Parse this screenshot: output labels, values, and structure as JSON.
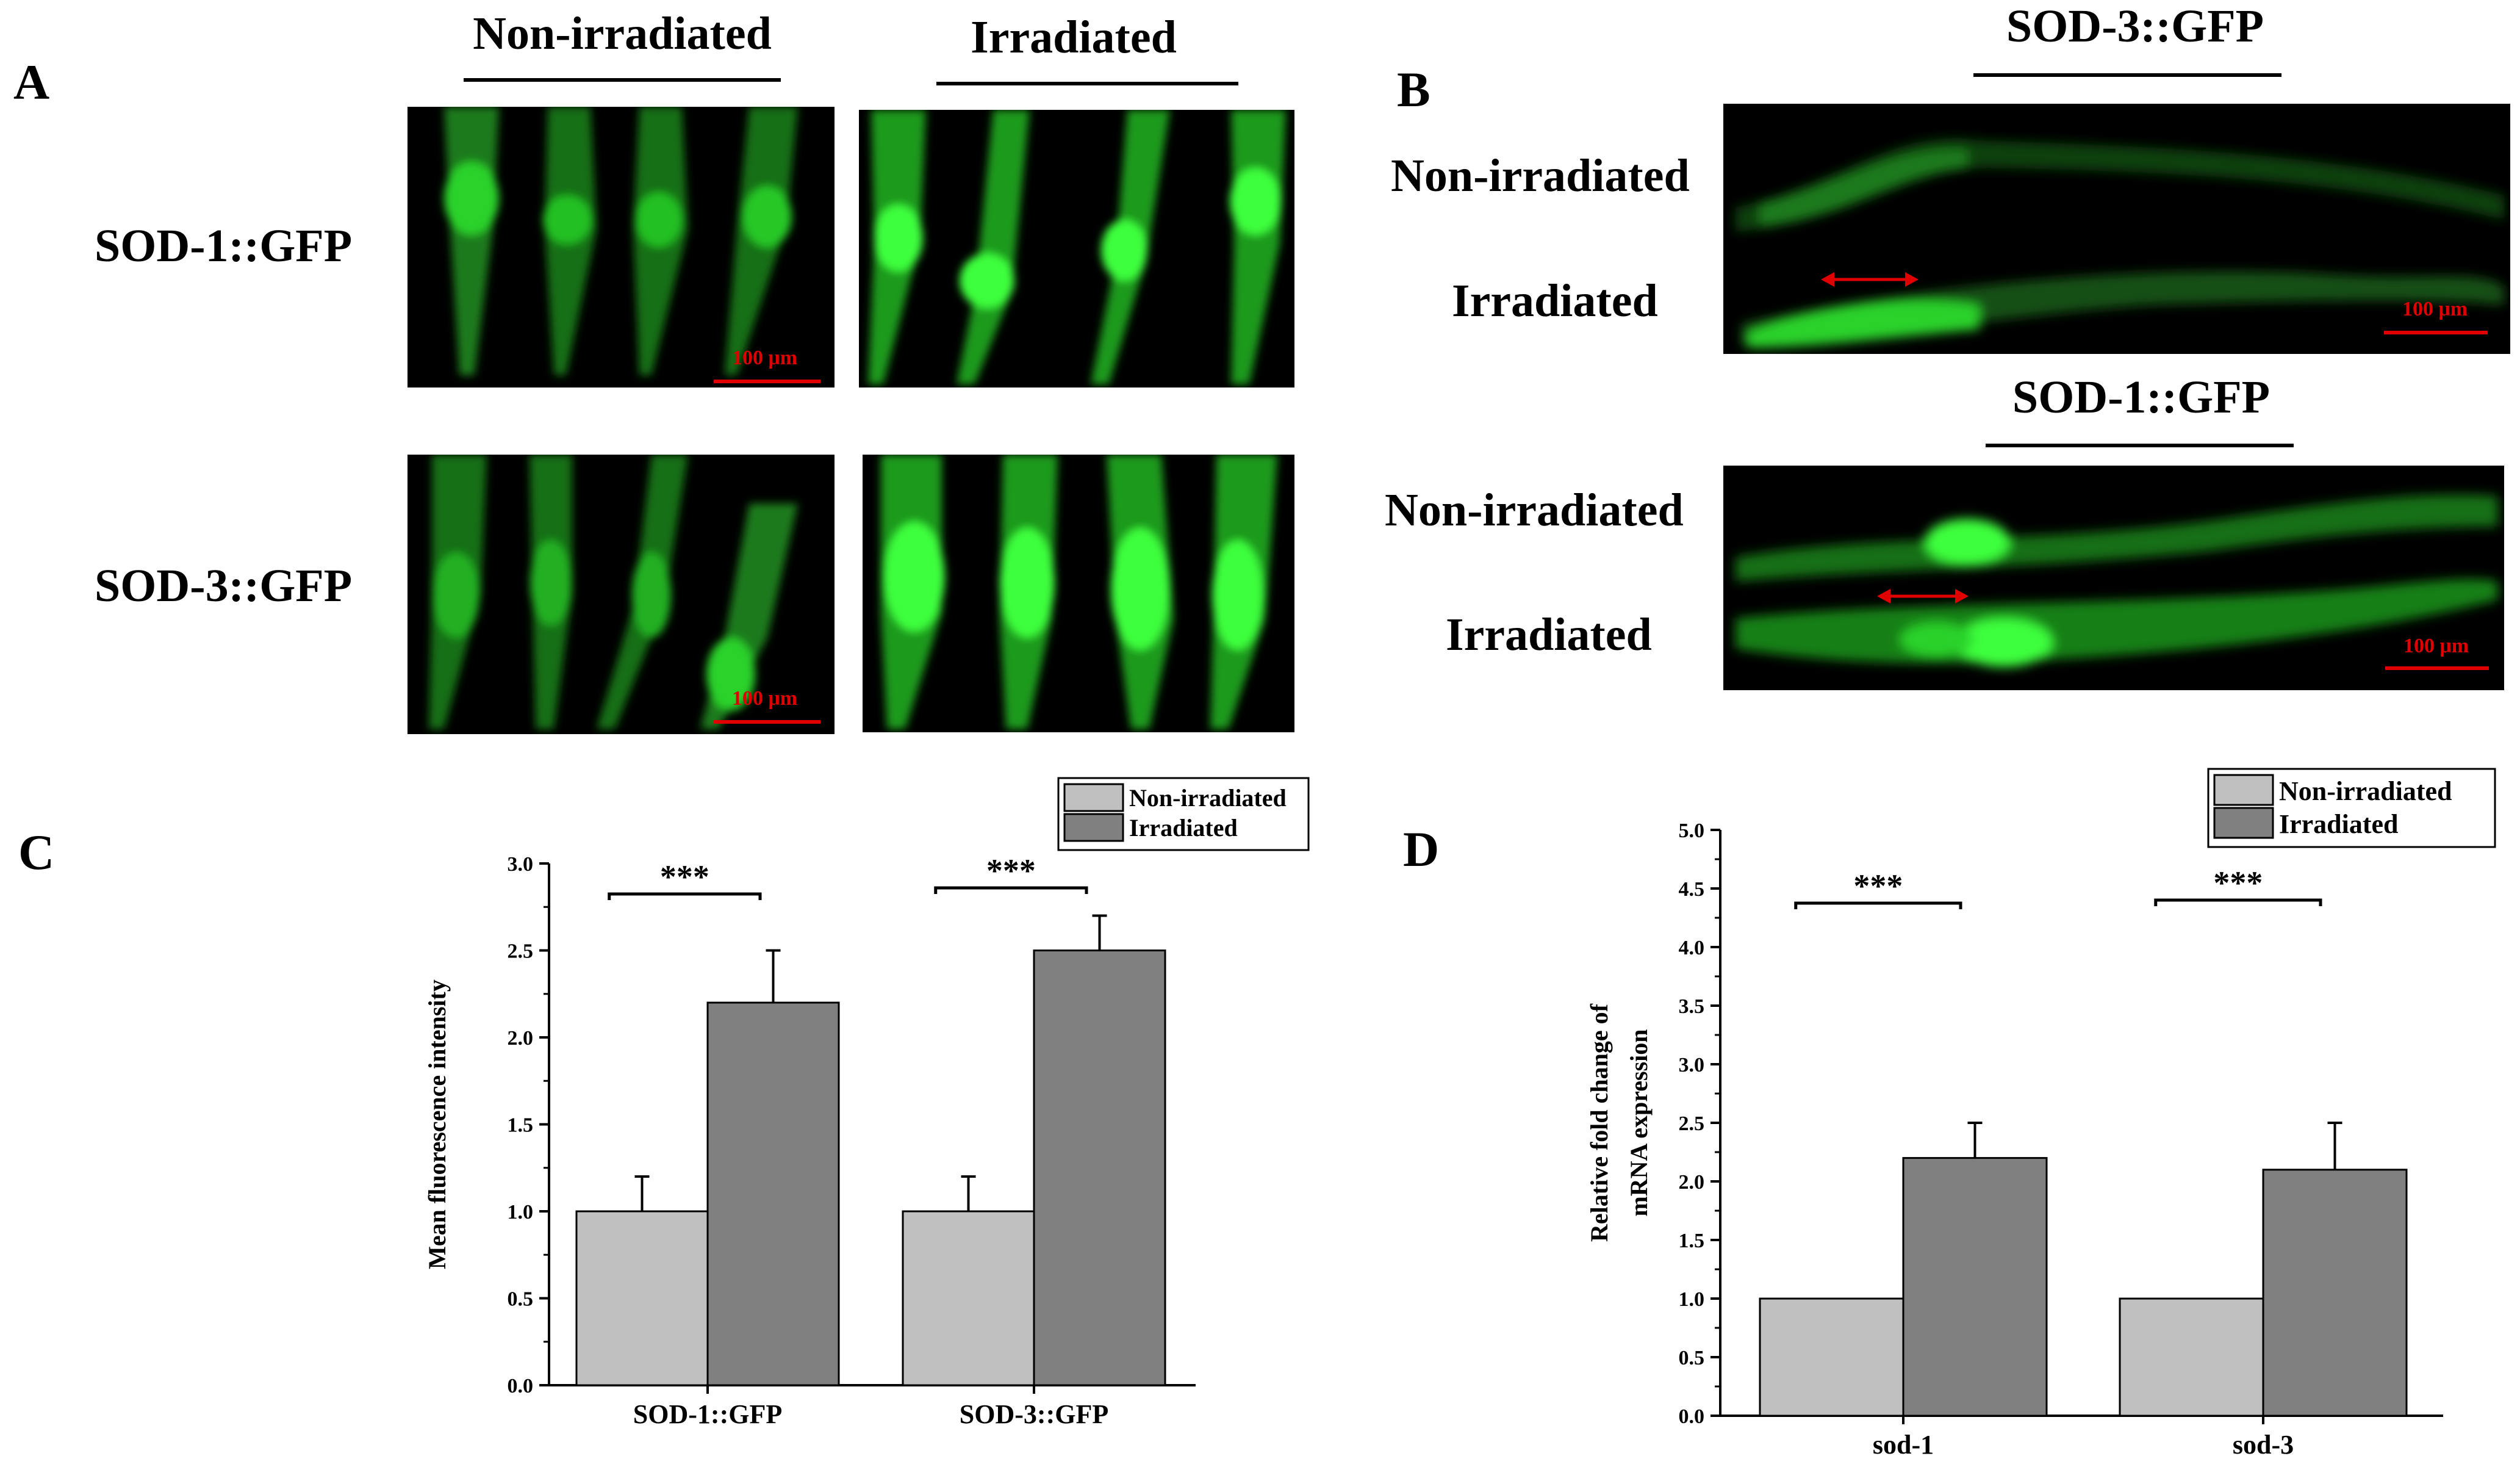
{
  "panels": {
    "A": {
      "letter": "A",
      "col_headers": [
        "Non-irradiated",
        "Irradiated"
      ],
      "row_labels": [
        "SOD-1::GFP",
        "SOD-3::GFP"
      ],
      "scale_label": "100 μm"
    },
    "B": {
      "letter": "B",
      "group_titles": [
        "SOD-3::GFP",
        "SOD-1::GFP"
      ],
      "row_labels": [
        "Non-irradiated",
        "Irradiated"
      ],
      "scale_label": "100 μm"
    },
    "C": {
      "letter": "C"
    },
    "D": {
      "letter": "D"
    }
  },
  "colors": {
    "non_irradiated": "#c0c0c0",
    "irradiated": "#808080",
    "gfp": "#22e022",
    "scale": "#e00000"
  },
  "chart_data": [
    {
      "panel": "C",
      "type": "bar",
      "categories": [
        "SOD-1::GFP",
        "SOD-3::GFP"
      ],
      "series": [
        {
          "name": "Non-irradiated",
          "values": [
            1.0,
            1.0
          ],
          "errors": [
            0.2,
            0.2
          ]
        },
        {
          "name": "Irradiated",
          "values": [
            2.2,
            2.5
          ],
          "errors": [
            0.3,
            0.2
          ]
        }
      ],
      "ylabel": "Mean fluorescence intensity",
      "xlabel": "",
      "ylim": [
        0,
        3.0
      ],
      "yticks": [
        "0.0",
        "0.5",
        "1.0",
        "1.5",
        "2.0",
        "2.5",
        "3.0"
      ],
      "significance": [
        "***",
        "***"
      ],
      "legend": "top-right"
    },
    {
      "panel": "D",
      "type": "bar",
      "categories": [
        "sod-1",
        "sod-3"
      ],
      "series": [
        {
          "name": "Non-irradiated",
          "values": [
            1.0,
            1.0
          ],
          "errors": [
            0,
            0
          ]
        },
        {
          "name": "Irradiated",
          "values": [
            2.2,
            2.1
          ],
          "errors": [
            0.3,
            0.4
          ]
        }
      ],
      "ylabel": [
        "Relative fold change of",
        "mRNA expression"
      ],
      "xlabel": "",
      "ylim": [
        0,
        5.0
      ],
      "yticks": [
        "0.0",
        "0.5",
        "1.0",
        "1.5",
        "2.0",
        "2.5",
        "3.0",
        "3.5",
        "4.0",
        "4.5",
        "5.0"
      ],
      "significance": [
        "***",
        "***"
      ],
      "legend": "top-right"
    }
  ]
}
